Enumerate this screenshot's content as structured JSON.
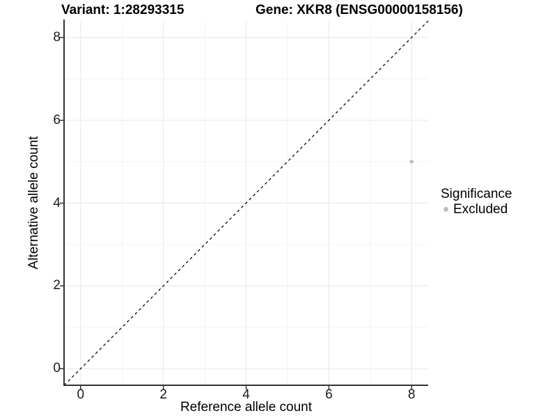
{
  "page": {
    "background": "#ffffff"
  },
  "chart_data": {
    "type": "scatter",
    "title_left": "Variant: 1:28293315",
    "title_right": "Gene: XKR8 (ENSG00000158156)",
    "xlabel": "Reference allele count",
    "ylabel": "Alternative allele count",
    "xlim": [
      -0.4,
      8.4
    ],
    "ylim": [
      -0.4,
      8.4
    ],
    "xticks": [
      0,
      2,
      4,
      6,
      8
    ],
    "yticks": [
      0,
      2,
      4,
      6,
      8
    ],
    "minor_ticks": [
      1,
      3,
      5,
      7
    ],
    "grid": true,
    "points": [
      {
        "x": 8,
        "y": 5,
        "series": "Excluded",
        "color": "#bdbdbd",
        "radius": 2.8
      }
    ],
    "reference_line": {
      "type": "identity",
      "from": -0.4,
      "to": 8.4,
      "style": "dashed",
      "color": "#1a1a1a"
    },
    "legend": {
      "position": "right",
      "title": "Significance",
      "entries": [
        {
          "label": "Excluded",
          "color": "#bdbdbd"
        }
      ]
    },
    "colors": {
      "axis_line": "#333333",
      "tick_text": "#1a1a1a",
      "grid_major": "#e7e7e7",
      "grid_minor": "#f2f2f2",
      "title_text": "#000000",
      "background": "#ffffff"
    }
  }
}
